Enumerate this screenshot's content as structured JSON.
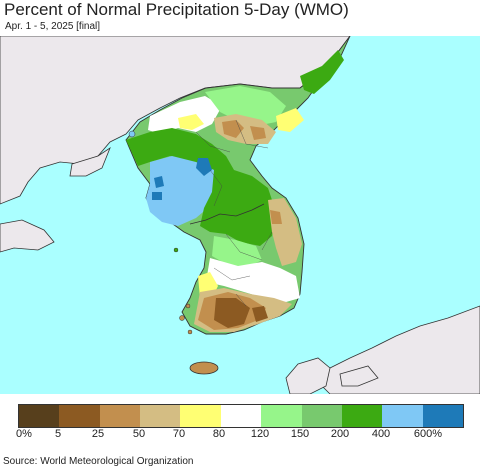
{
  "header": {
    "title": "Percent of Normal Precipitation 5-Day (WMO)",
    "subtitle": "Apr. 1 - 5, 2025 [final]"
  },
  "legend": {
    "colors": [
      "#573f1c",
      "#8c5a22",
      "#c28f4e",
      "#d4bd83",
      "#ffff73",
      "#ffffff",
      "#96f58a",
      "#78c96e",
      "#3caa12",
      "#7fc8f5",
      "#1e7ab8"
    ],
    "labels": [
      "0%",
      "5",
      "25",
      "50",
      "70",
      "80",
      "120",
      "150",
      "200",
      "400",
      "600%"
    ]
  },
  "footer": {
    "source": "Source: World Meteorological Organization"
  },
  "map_colors": {
    "sea": "#aaffff",
    "land_outside": "#ece8ec",
    "border": "#333333"
  }
}
